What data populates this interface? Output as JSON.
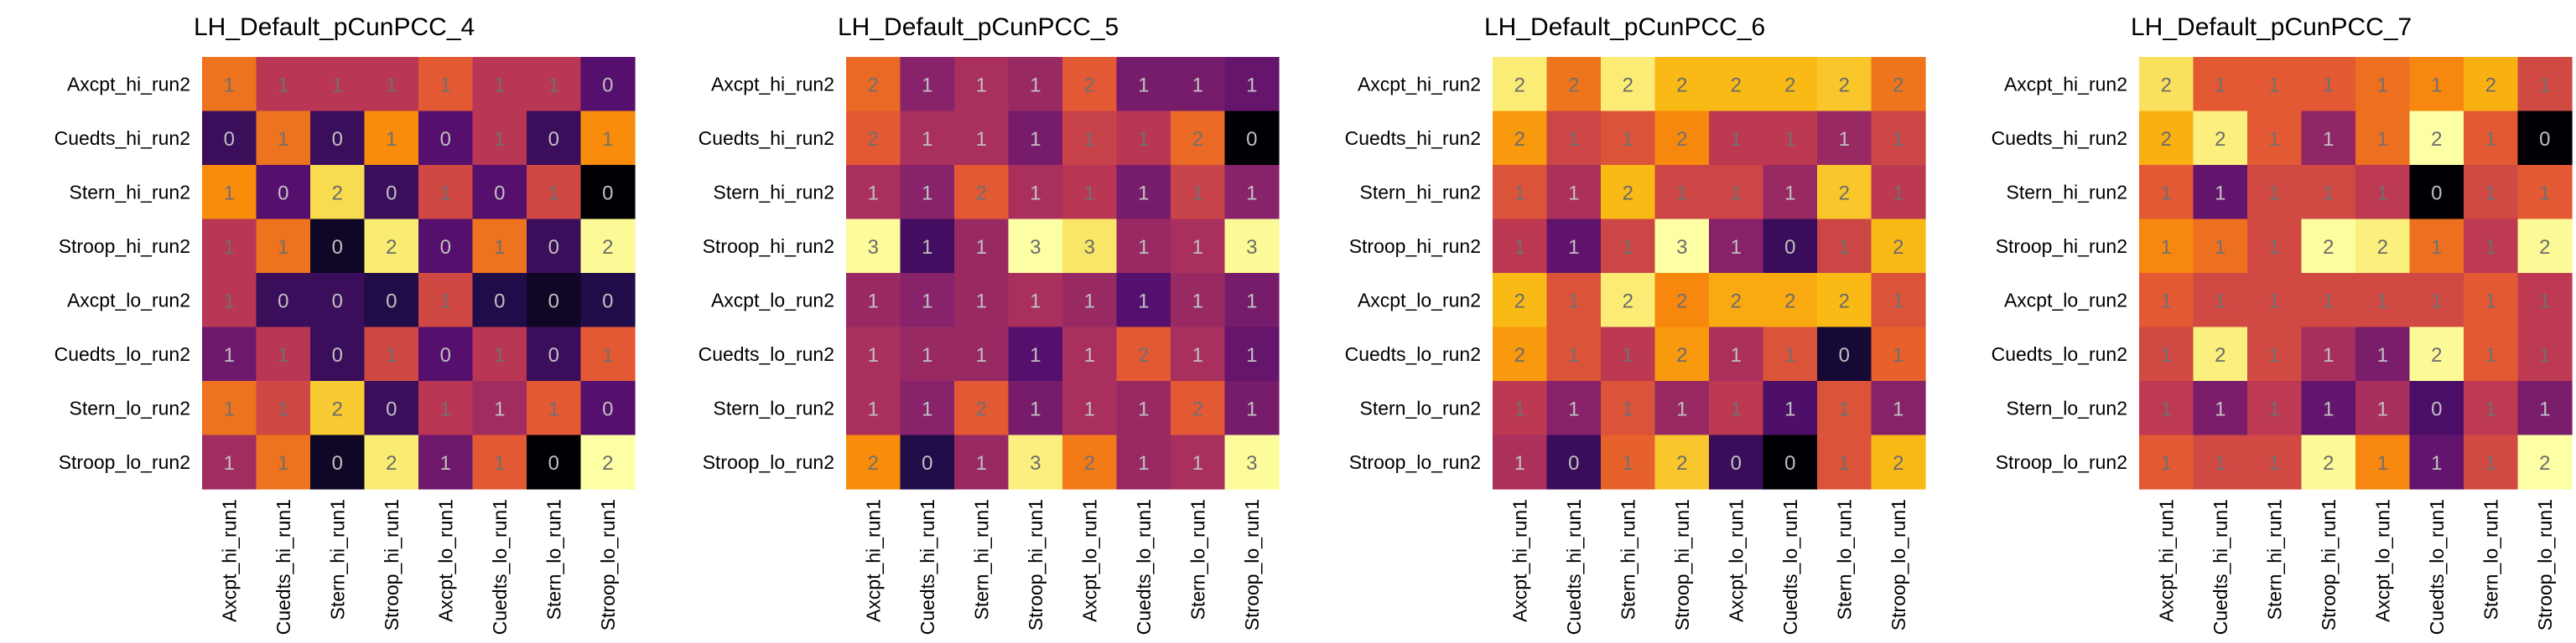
{
  "chart_data": [
    {
      "type": "heatmap",
      "title": "LH_Default_pCunPCC_4",
      "row_labels": [
        "Axcpt_hi_run2",
        "Cuedts_hi_run2",
        "Stern_hi_run2",
        "Stroop_hi_run2",
        "Axcpt_lo_run2",
        "Cuedts_lo_run2",
        "Stern_lo_run2",
        "Stroop_lo_run2"
      ],
      "col_labels": [
        "Axcpt_hi_run1",
        "Cuedts_hi_run1",
        "Stern_hi_run1",
        "Stroop_hi_run1",
        "Axcpt_lo_run1",
        "Cuedts_lo_run1",
        "Stern_lo_run1",
        "Stroop_lo_run1"
      ],
      "values": [
        [
          1.1,
          0.8,
          0.8,
          0.8,
          1.0,
          0.8,
          0.8,
          0.4
        ],
        [
          0.3,
          1.1,
          0.3,
          1.2,
          0.4,
          0.8,
          0.3,
          1.2
        ],
        [
          1.2,
          0.4,
          1.6,
          0.3,
          0.9,
          0.4,
          0.9,
          0.0
        ],
        [
          0.8,
          1.1,
          0.1,
          1.7,
          0.4,
          1.1,
          0.3,
          1.8
        ],
        [
          0.8,
          0.3,
          0.3,
          0.2,
          0.9,
          0.2,
          0.1,
          0.2
        ],
        [
          0.5,
          0.8,
          0.3,
          0.9,
          0.4,
          0.8,
          0.3,
          1.0
        ],
        [
          1.1,
          0.9,
          1.5,
          0.3,
          0.8,
          0.7,
          1.0,
          0.4
        ],
        [
          0.7,
          1.1,
          0.1,
          1.7,
          0.5,
          1.0,
          0.0,
          2.0
        ]
      ]
    },
    {
      "type": "heatmap",
      "title": "LH_Default_pCunPCC_5",
      "row_labels": [
        "Axcpt_hi_run2",
        "Cuedts_hi_run2",
        "Stern_hi_run2",
        "Stroop_hi_run2",
        "Axcpt_lo_run2",
        "Cuedts_lo_run2",
        "Stern_lo_run2",
        "Stroop_lo_run2"
      ],
      "col_labels": [
        "Axcpt_hi_run1",
        "Cuedts_hi_run1",
        "Stern_hi_run1",
        "Stroop_hi_run1",
        "Axcpt_lo_run1",
        "Cuedts_lo_run1",
        "Stern_lo_run1",
        "Stroop_lo_run1"
      ],
      "values": [
        [
          1.6,
          0.9,
          1.1,
          1.0,
          1.5,
          0.8,
          0.8,
          0.7
        ],
        [
          1.5,
          1.1,
          1.1,
          0.8,
          1.3,
          1.2,
          1.6,
          0.0
        ],
        [
          1.1,
          0.9,
          1.5,
          1.1,
          1.2,
          0.8,
          1.3,
          0.9
        ],
        [
          2.8,
          0.5,
          1.0,
          3.0,
          2.5,
          1.0,
          1.1,
          2.7
        ],
        [
          1.0,
          0.9,
          1.0,
          1.1,
          1.0,
          0.6,
          1.0,
          0.8
        ],
        [
          1.1,
          1.0,
          1.0,
          0.6,
          1.1,
          1.5,
          1.1,
          0.7
        ],
        [
          1.1,
          0.9,
          1.5,
          0.8,
          1.1,
          1.0,
          1.5,
          0.8
        ],
        [
          1.8,
          0.3,
          1.0,
          2.6,
          1.7,
          1.0,
          1.1,
          2.8
        ]
      ]
    },
    {
      "type": "heatmap",
      "title": "LH_Default_pCunPCC_6",
      "row_labels": [
        "Axcpt_hi_run2",
        "Cuedts_hi_run2",
        "Stern_hi_run2",
        "Stroop_hi_run2",
        "Axcpt_lo_run2",
        "Cuedts_lo_run2",
        "Stern_lo_run2",
        "Stroop_lo_run2"
      ],
      "col_labels": [
        "Axcpt_hi_run1",
        "Cuedts_hi_run1",
        "Stern_hi_run1",
        "Stroop_hi_run1",
        "Axcpt_lo_run1",
        "Cuedts_lo_run1",
        "Stern_lo_run1",
        "Stroop_lo_run1"
      ],
      "values": [
        [
          2.3,
          1.5,
          2.3,
          1.9,
          1.9,
          1.9,
          2.0,
          1.5
        ],
        [
          1.7,
          1.2,
          1.3,
          1.6,
          1.1,
          1.1,
          0.9,
          1.2
        ],
        [
          1.3,
          1.0,
          1.9,
          1.2,
          1.2,
          0.9,
          2.0,
          1.1
        ],
        [
          1.1,
          0.6,
          1.2,
          2.7,
          0.8,
          0.4,
          1.2,
          1.9
        ],
        [
          1.9,
          1.3,
          2.3,
          1.6,
          1.8,
          1.8,
          1.9,
          1.3
        ],
        [
          1.7,
          1.3,
          1.1,
          1.7,
          1.0,
          1.3,
          0.2,
          1.4
        ],
        [
          1.1,
          0.8,
          1.3,
          0.9,
          1.1,
          0.5,
          1.3,
          0.8
        ],
        [
          1.0,
          0.4,
          1.4,
          2.0,
          0.4,
          0.0,
          1.3,
          1.9
        ]
      ]
    },
    {
      "type": "heatmap",
      "title": "LH_Default_pCunPCC_7",
      "row_labels": [
        "Axcpt_hi_run2",
        "Cuedts_hi_run2",
        "Stern_hi_run2",
        "Stroop_hi_run2",
        "Axcpt_lo_run2",
        "Cuedts_lo_run2",
        "Stern_lo_run2",
        "Stroop_lo_run2"
      ],
      "col_labels": [
        "Axcpt_hi_run1",
        "Cuedts_hi_run1",
        "Stern_hi_run1",
        "Stroop_hi_run1",
        "Axcpt_lo_run1",
        "Cuedts_lo_run1",
        "Stern_lo_run1",
        "Stroop_lo_run1"
      ],
      "values": [
        [
          1.8,
          1.1,
          1.1,
          1.1,
          1.2,
          1.3,
          1.5,
          1.0
        ],
        [
          1.5,
          1.9,
          1.1,
          0.7,
          1.2,
          2.2,
          1.1,
          0.0
        ],
        [
          1.1,
          0.5,
          1.0,
          1.0,
          0.9,
          0.0,
          1.0,
          1.1
        ],
        [
          1.3,
          1.2,
          1.0,
          2.1,
          1.9,
          1.2,
          0.9,
          2.0
        ],
        [
          1.1,
          1.0,
          1.0,
          1.0,
          1.0,
          1.0,
          1.1,
          0.9
        ],
        [
          1.0,
          1.9,
          1.0,
          0.8,
          0.6,
          2.0,
          1.1,
          0.9
        ],
        [
          0.9,
          0.6,
          0.9,
          0.5,
          0.8,
          0.4,
          0.9,
          0.6
        ],
        [
          1.1,
          1.0,
          1.0,
          2.0,
          1.3,
          0.5,
          1.0,
          2.2
        ]
      ]
    }
  ]
}
